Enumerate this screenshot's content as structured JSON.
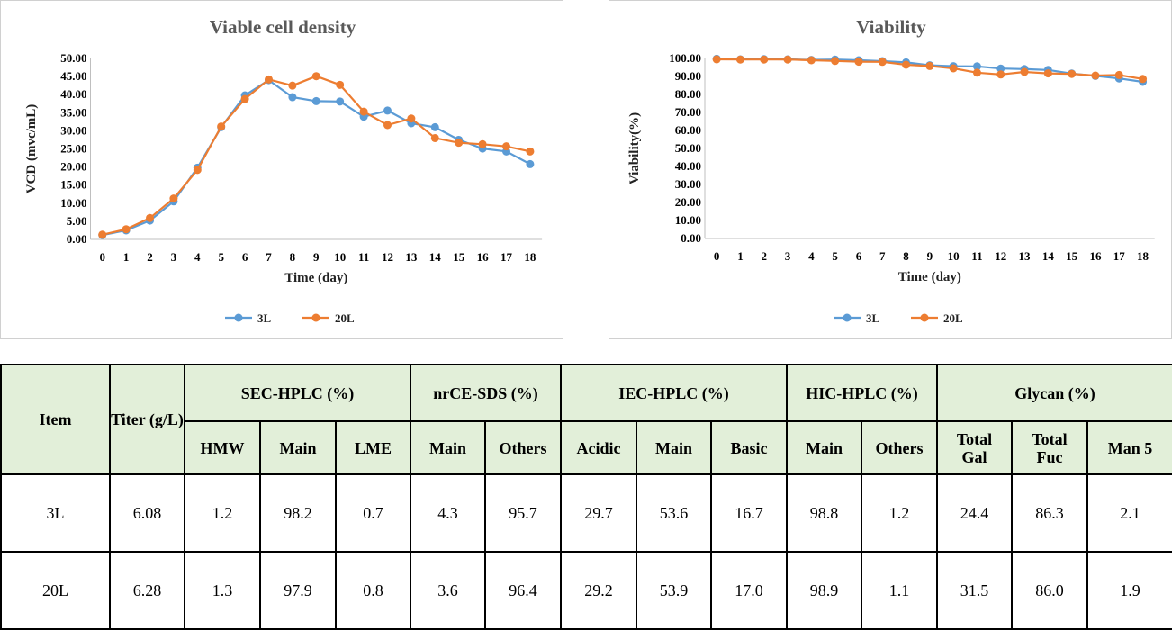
{
  "charts": {
    "series_colors": {
      "3L": "#5b9bd5",
      "20L": "#ed7d31"
    }
  },
  "chart_data": [
    {
      "type": "line",
      "title": "Viable cell density",
      "xlabel": "Time (day)",
      "ylabel": "VCD (mvc/mL)",
      "x": [
        0,
        1,
        2,
        3,
        4,
        5,
        6,
        7,
        8,
        9,
        10,
        11,
        12,
        13,
        14,
        15,
        16,
        17,
        18
      ],
      "ylim": [
        0,
        50
      ],
      "yticks": [
        "0.00",
        "5.00",
        "10.00",
        "15.00",
        "20.00",
        "25.00",
        "30.00",
        "35.00",
        "40.00",
        "45.00",
        "50.00"
      ],
      "grid": false,
      "legend": "bottom",
      "series": [
        {
          "name": "3L",
          "color": "#5b9bd5",
          "values": [
            1.2,
            2.5,
            5.2,
            10.5,
            19.8,
            31.0,
            39.8,
            44.0,
            39.3,
            38.2,
            38.1,
            33.9,
            35.6,
            32.1,
            31.0,
            27.5,
            25.1,
            24.3,
            20.8
          ]
        },
        {
          "name": "20L",
          "color": "#ed7d31",
          "values": [
            1.3,
            2.8,
            5.9,
            11.3,
            19.2,
            31.2,
            38.8,
            44.2,
            42.5,
            45.1,
            42.7,
            35.3,
            31.6,
            33.4,
            28.0,
            26.7,
            26.3,
            25.7,
            24.3
          ]
        }
      ]
    },
    {
      "type": "line",
      "title": "Viability",
      "xlabel": "Time (day)",
      "ylabel": "Viability(%)",
      "x": [
        0,
        1,
        2,
        3,
        4,
        5,
        6,
        7,
        8,
        9,
        10,
        11,
        12,
        13,
        14,
        15,
        16,
        17,
        18
      ],
      "ylim": [
        0,
        100
      ],
      "yticks": [
        "0.00",
        "10.00",
        "20.00",
        "30.00",
        "40.00",
        "50.00",
        "60.00",
        "70.00",
        "80.00",
        "90.00",
        "100.00"
      ],
      "grid": false,
      "legend": "bottom",
      "series": [
        {
          "name": "3L",
          "color": "#5b9bd5",
          "values": [
            99.8,
            99.5,
            99.6,
            99.5,
            99.2,
            99.4,
            99.0,
            98.5,
            97.8,
            96.2,
            95.7,
            95.6,
            94.4,
            94.1,
            93.6,
            91.6,
            90.3,
            88.9,
            87.0
          ]
        },
        {
          "name": "20L",
          "color": "#ed7d31",
          "values": [
            99.5,
            99.4,
            99.4,
            99.4,
            99.0,
            98.6,
            98.2,
            98.1,
            96.5,
            95.8,
            94.5,
            92.1,
            91.1,
            92.5,
            91.7,
            91.4,
            90.5,
            90.8,
            88.6
          ]
        }
      ]
    }
  ],
  "table": {
    "item_header": "Item",
    "titer_header": "Titer (g/L)",
    "groups": {
      "sec": "SEC-HPLC (%)",
      "nrce": "nrCE-SDS (%)",
      "iec": "IEC-HPLC (%)",
      "hic": "HIC-HPLC (%)",
      "glycan": "Glycan (%)"
    },
    "sub": {
      "hmw": "HMW",
      "sec_main": "Main",
      "lme": "LME",
      "nrce_main": "Main",
      "nrce_others": "Others",
      "acidic": "Acidic",
      "iec_main": "Main",
      "basic": "Basic",
      "hic_main": "Main",
      "hic_others": "Others",
      "total_gal_1": "Total",
      "total_gal_2": "Gal",
      "total_fuc_1": "Total",
      "total_fuc_2": "Fuc",
      "man5": "Man 5"
    },
    "rows": [
      {
        "item": "3L",
        "values": [
          "6.08",
          "1.2",
          "98.2",
          "0.7",
          "4.3",
          "95.7",
          "29.7",
          "53.6",
          "16.7",
          "98.8",
          "1.2",
          "24.4",
          "86.3",
          "2.1"
        ]
      },
      {
        "item": "20L",
        "values": [
          "6.28",
          "1.3",
          "97.9",
          "0.8",
          "3.6",
          "96.4",
          "29.2",
          "53.9",
          "17.0",
          "98.9",
          "1.1",
          "31.5",
          "86.0",
          "1.9"
        ]
      }
    ]
  }
}
